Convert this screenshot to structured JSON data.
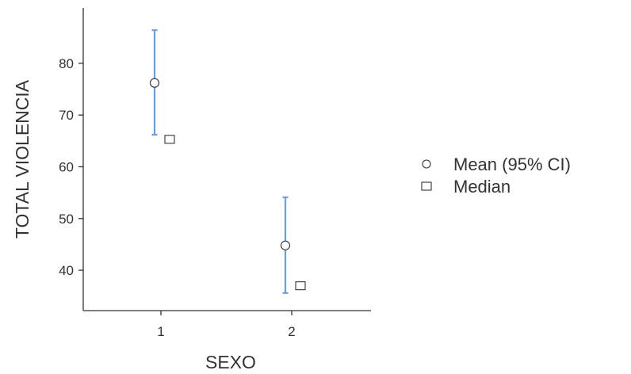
{
  "chart_data": {
    "type": "scatter",
    "xlabel": "SEXO",
    "ylabel": "TOTAL VIOLENCIA",
    "categories": [
      "1",
      "2"
    ],
    "ylim": [
      32.2,
      90.7
    ],
    "yticks": [
      40,
      50,
      60,
      70,
      80
    ],
    "series": [
      {
        "name": "Mean (95% CI)",
        "marker": "circle",
        "values": [
          76.2,
          44.8
        ],
        "ci_lower": [
          66.2,
          35.6
        ],
        "ci_upper": [
          86.4,
          54.1
        ]
      },
      {
        "name": "Median",
        "marker": "square",
        "values": [
          65.3,
          37.0
        ]
      }
    ],
    "grid": false,
    "legend_position": "right",
    "colors": {
      "error_bar": "#6f9ee0",
      "marker_stroke": "#333333",
      "axis": "#333333"
    }
  }
}
